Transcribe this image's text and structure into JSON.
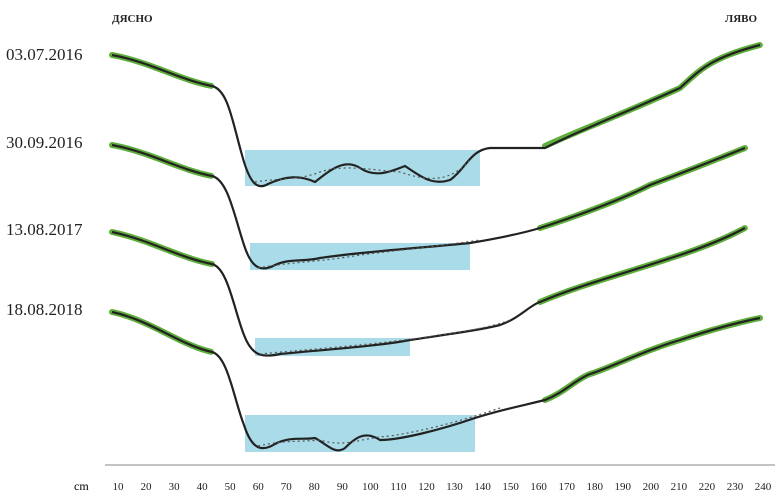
{
  "labels": {
    "left": "ДЯСНО",
    "right": "ЛЯВО"
  },
  "profiles": [
    {
      "date": "03.07.2016"
    },
    {
      "date": "30.09.2016"
    },
    {
      "date": "13.08.2017"
    },
    {
      "date": "18.08.2018"
    }
  ],
  "axis": {
    "unit": "cm",
    "ticks": [
      "10",
      "20",
      "30",
      "40",
      "50",
      "60",
      "70",
      "80",
      "90",
      "100",
      "110",
      "120",
      "130",
      "140",
      "150",
      "160",
      "170",
      "180",
      "190",
      "200",
      "210",
      "220",
      "230",
      "240"
    ]
  }
}
